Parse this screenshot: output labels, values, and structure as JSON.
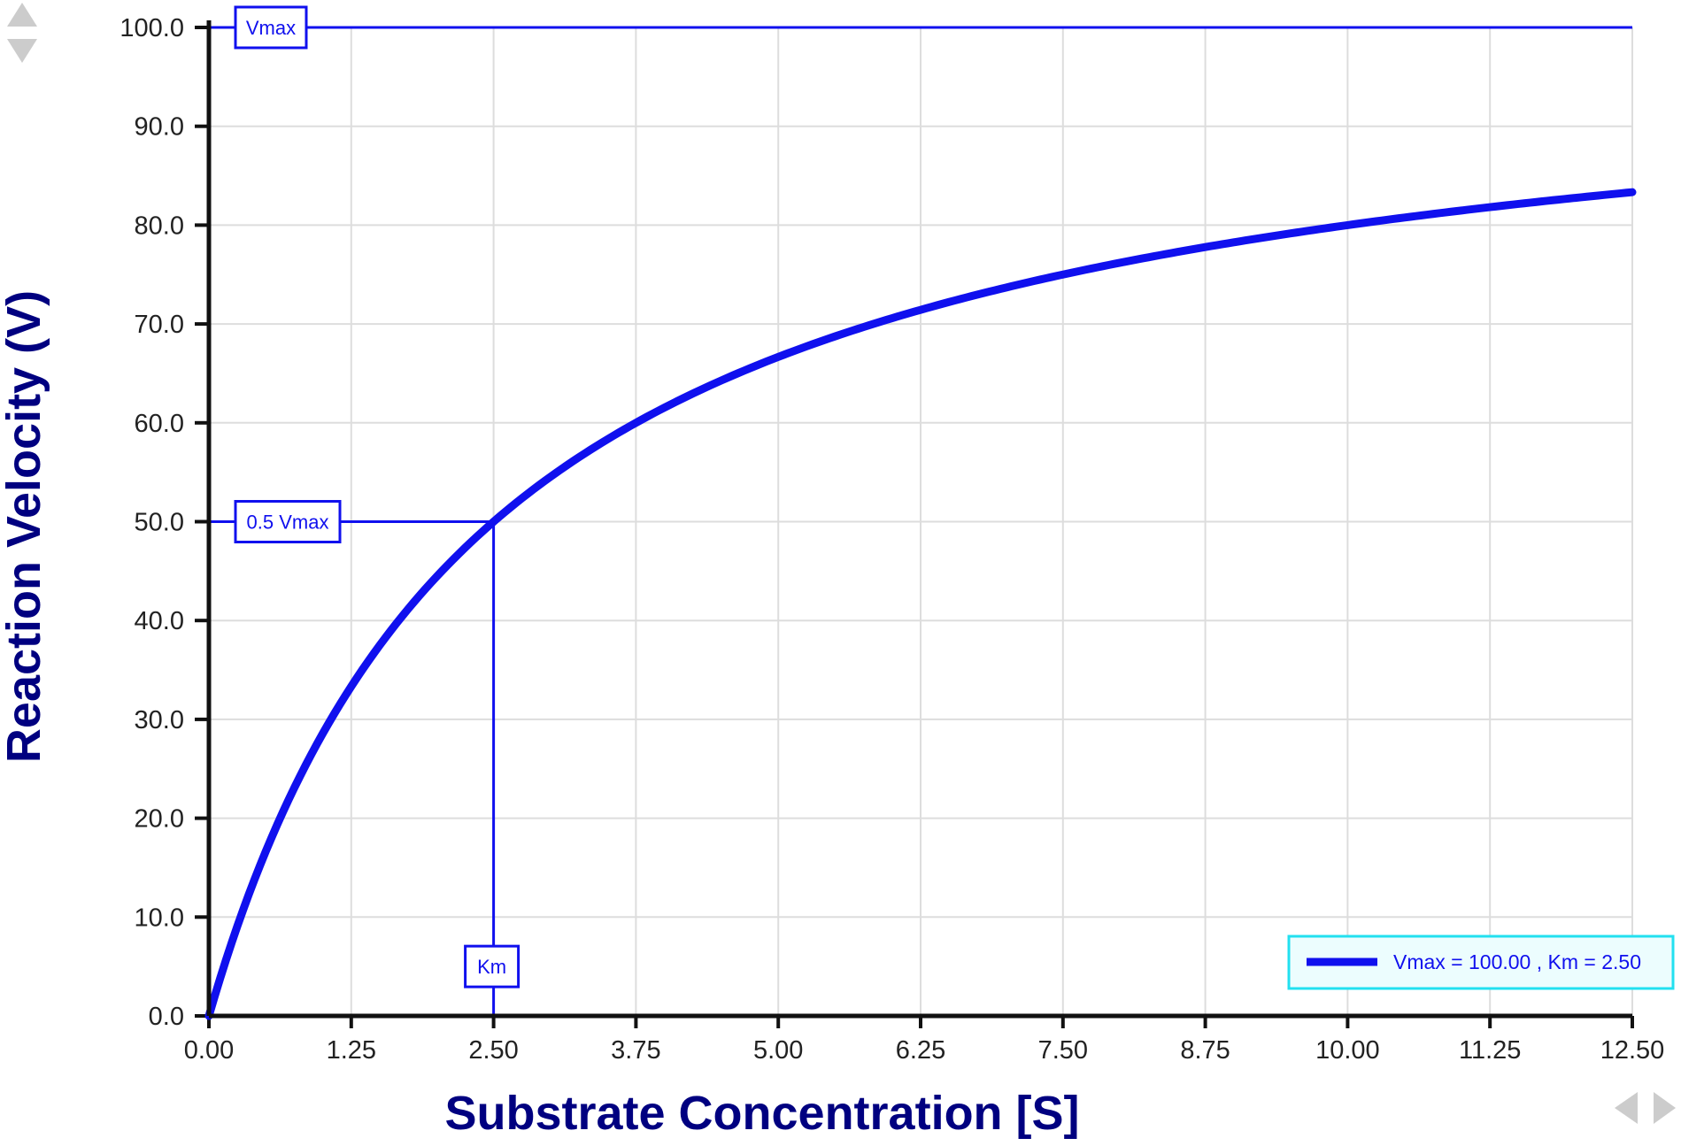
{
  "chart_data": {
    "type": "line",
    "title": "",
    "xlabel": "Substrate Concentration [S]",
    "ylabel": "Reaction Velocity (V)",
    "xlim": [
      0,
      12.5
    ],
    "ylim": [
      0,
      100
    ],
    "x_ticks": [
      "0.00",
      "1.25",
      "2.50",
      "3.75",
      "5.00",
      "6.25",
      "7.50",
      "8.75",
      "10.00",
      "11.25",
      "12.50"
    ],
    "y_ticks": [
      "0.0",
      "10.0",
      "20.0",
      "30.0",
      "40.0",
      "50.0",
      "60.0",
      "70.0",
      "80.0",
      "90.0",
      "100.0"
    ],
    "grid": true,
    "legend_position": "bottom-right",
    "series": [
      {
        "name": "Vmax = 100.00 , Km = 2.50",
        "color": "#1010ee",
        "x": [
          0,
          0.25,
          0.5,
          1.0,
          1.25,
          1.5,
          2.0,
          2.5,
          3.0,
          3.75,
          4.5,
          5.0,
          6.25,
          7.5,
          8.75,
          10.0,
          11.25,
          12.5
        ],
        "y": [
          0,
          9.1,
          16.7,
          28.6,
          33.3,
          37.5,
          44.4,
          50.0,
          54.5,
          60.0,
          64.3,
          66.7,
          71.4,
          75.0,
          77.8,
          80.0,
          81.8,
          83.3
        ]
      }
    ],
    "parameters": {
      "Vmax": 100.0,
      "Km": 2.5
    },
    "annotations": {
      "vmax_label": "Vmax",
      "half_vmax_label": "0.5 Vmax",
      "km_label": "Km"
    },
    "colors": {
      "curve": "#1010ee",
      "axis": "#111111",
      "grid": "#dddddd",
      "axis_title": "#000080",
      "legend_border": "#22e0f0",
      "legend_background": "#ecfdfe",
      "nav_arrows": "#cccccc"
    }
  }
}
